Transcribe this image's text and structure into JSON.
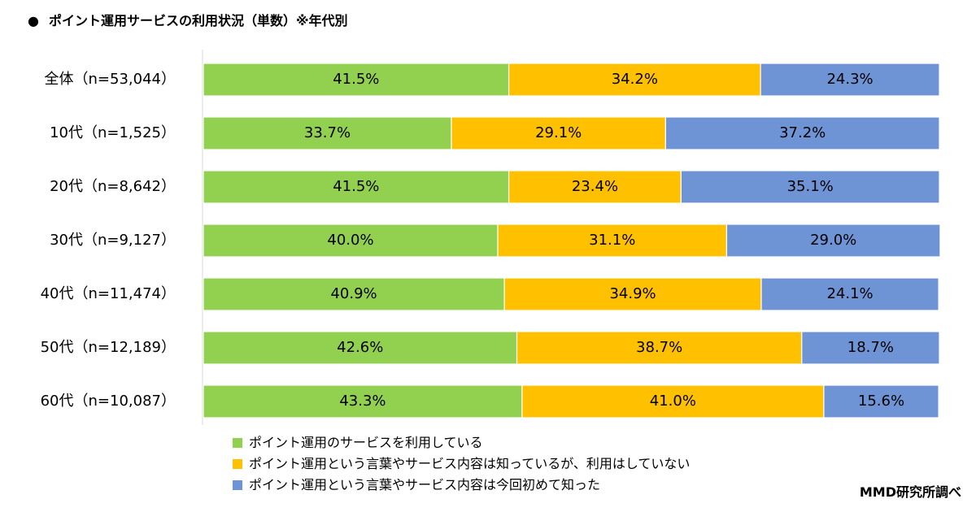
{
  "title_bullet": "●",
  "title": "ポイント運用サービスの利用状況（単数）※年代別",
  "source": "MMD研究所調べ",
  "colors": {
    "use": "#92d050",
    "know_not_use": "#ffc000",
    "first_time": "#6f94d6"
  },
  "chart_data": {
    "type": "bar",
    "orientation": "horizontal",
    "stacked": true,
    "percent_stacked": true,
    "title": "ポイント運用サービスの利用状況（単数）※年代別",
    "categories": [
      "全体（n=53,044）",
      "10代（n=1,525）",
      "20代（n=8,642）",
      "30代（n=9,127）",
      "40代（n=11,474）",
      "50代（n=12,189）",
      "60代（n=10,087）"
    ],
    "series": [
      {
        "name": "ポイント運用のサービスを利用している",
        "color": "#92d050",
        "values": [
          41.5,
          33.7,
          41.5,
          40.0,
          40.9,
          42.6,
          43.3
        ],
        "labels": [
          "41.5%",
          "33.7%",
          "41.5%",
          "40.0%",
          "40.9%",
          "42.6%",
          "43.3%"
        ]
      },
      {
        "name": "ポイント運用という言葉やサービス内容は知っているが、利用はしていない",
        "color": "#ffc000",
        "values": [
          34.2,
          29.1,
          23.4,
          31.1,
          34.9,
          38.7,
          41.0
        ],
        "labels": [
          "34.2%",
          "29.1%",
          "23.4%",
          "31.1%",
          "34.9%",
          "38.7%",
          "41.0%"
        ]
      },
      {
        "name": "ポイント運用という言葉やサービス内容は今回初めて知った",
        "color": "#6f94d6",
        "values": [
          24.3,
          37.2,
          35.1,
          29.0,
          24.1,
          18.7,
          15.6
        ],
        "labels": [
          "24.3%",
          "37.2%",
          "35.1%",
          "29.0%",
          "24.1%",
          "18.7%",
          "15.6%"
        ]
      }
    ],
    "xlim": [
      0,
      100
    ],
    "grid": false,
    "legend_position": "bottom"
  }
}
